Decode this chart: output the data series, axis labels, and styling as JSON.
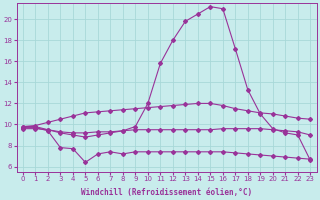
{
  "xlabel": "Windchill (Refroidissement éolien,°C)",
  "xlim": [
    -0.5,
    23.5
  ],
  "ylim": [
    5.5,
    21.5
  ],
  "yticks": [
    6,
    8,
    10,
    12,
    14,
    16,
    18,
    20
  ],
  "xticks": [
    0,
    1,
    2,
    3,
    4,
    5,
    6,
    7,
    8,
    9,
    10,
    11,
    12,
    13,
    14,
    15,
    16,
    17,
    18,
    19,
    20,
    21,
    22,
    23
  ],
  "background_color": "#c8ecec",
  "grid_color": "#a8d8d8",
  "line_color": "#993399",
  "line1_x": [
    0,
    1,
    2,
    3,
    4,
    5,
    6,
    7,
    8,
    9,
    10,
    11,
    12,
    13,
    14,
    15,
    16,
    17,
    18,
    19,
    20,
    21,
    22,
    23
  ],
  "line1_y": [
    9.8,
    9.9,
    10.2,
    10.5,
    10.8,
    11.1,
    11.2,
    11.3,
    11.4,
    11.5,
    11.6,
    11.7,
    11.8,
    11.9,
    12.0,
    12.0,
    11.8,
    11.5,
    11.3,
    11.1,
    11.0,
    10.8,
    10.6,
    10.5
  ],
  "line2_x": [
    0,
    1,
    2,
    3,
    4,
    5,
    6,
    7,
    8,
    9,
    10,
    11,
    12,
    13,
    14,
    15,
    16,
    17,
    18,
    19,
    20,
    21,
    22,
    23
  ],
  "line2_y": [
    9.6,
    9.6,
    9.5,
    9.3,
    9.2,
    9.2,
    9.3,
    9.3,
    9.4,
    9.5,
    9.5,
    9.5,
    9.5,
    9.5,
    9.5,
    9.5,
    9.6,
    9.6,
    9.6,
    9.6,
    9.5,
    9.4,
    9.3,
    9.0
  ],
  "line3_x": [
    0,
    1,
    2,
    3,
    4,
    5,
    6,
    7,
    8,
    9,
    10,
    11,
    12,
    13,
    14,
    15,
    16,
    17,
    18,
    19,
    20,
    21,
    22,
    23
  ],
  "line3_y": [
    9.7,
    9.7,
    9.4,
    7.8,
    7.7,
    6.4,
    7.2,
    7.4,
    7.2,
    7.4,
    7.4,
    7.4,
    7.4,
    7.4,
    7.4,
    7.4,
    7.4,
    7.3,
    7.2,
    7.1,
    7.0,
    6.9,
    6.8,
    6.7
  ],
  "line4_x": [
    0,
    1,
    2,
    3,
    4,
    5,
    6,
    7,
    8,
    9,
    10,
    11,
    12,
    13,
    14,
    15,
    16,
    17,
    18,
    19,
    20,
    21,
    22,
    23
  ],
  "line4_y": [
    9.8,
    9.8,
    9.5,
    9.2,
    9.0,
    8.8,
    9.0,
    9.2,
    9.4,
    9.8,
    12.0,
    15.8,
    18.0,
    19.8,
    20.5,
    21.2,
    21.0,
    17.2,
    13.3,
    11.0,
    9.6,
    9.2,
    9.0,
    6.6
  ],
  "marker": "D",
  "markersize": 2.0
}
